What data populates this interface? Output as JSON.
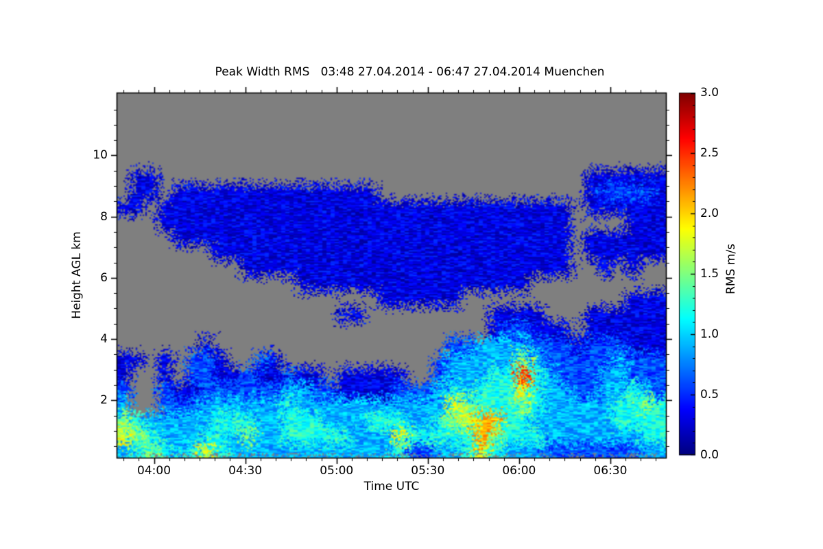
{
  "figure": {
    "background": "#ffffff"
  },
  "chart_data": {
    "type": "heatmap",
    "title": "Peak Width RMS   03:48 27.04.2014 - 06:47 27.04.2014 Muenchen",
    "xlabel": "Time UTC",
    "ylabel": "Height AGL km",
    "x_range_minutes": [
      227.7,
      408.5
    ],
    "x_ticks": [
      {
        "minutes": 240,
        "label": "04:00"
      },
      {
        "minutes": 270,
        "label": "04:30"
      },
      {
        "minutes": 300,
        "label": "05:00"
      },
      {
        "minutes": 330,
        "label": "05:30"
      },
      {
        "minutes": 360,
        "label": "06:00"
      },
      {
        "minutes": 390,
        "label": "06:30"
      }
    ],
    "x_minor_step_minutes": 5,
    "y_range_km": [
      0.1,
      12.05
    ],
    "y_ticks": [
      {
        "km": 2,
        "label": "2"
      },
      {
        "km": 4,
        "label": "4"
      },
      {
        "km": 6,
        "label": "6"
      },
      {
        "km": 8,
        "label": "8"
      },
      {
        "km": 10,
        "label": "10"
      }
    ],
    "y_minor_step_km": 0.5,
    "colorbar": {
      "label": "RMS m/s",
      "min": 0,
      "max": 3,
      "ticks": [
        {
          "value": 0.0,
          "label": "0.0"
        },
        {
          "value": 0.5,
          "label": "0.5"
        },
        {
          "value": 1.0,
          "label": "1.0"
        },
        {
          "value": 1.5,
          "label": "1.5"
        },
        {
          "value": 2.0,
          "label": "2.0"
        },
        {
          "value": 2.5,
          "label": "2.5"
        },
        {
          "value": 3.0,
          "label": "3.0"
        }
      ],
      "minor_step": 0.1,
      "colormap": "jet"
    },
    "no_data_color": "#7f7f7f",
    "grid": {
      "comment": "RMS field, 24 rows (top=11.5-12km ... bottom=0-0.5km, 0.5km per row) x 40 time columns spanning 03:48-06:47. '.'=no data (gray); digit d = RMS value d*0.3 m/s.",
      "cols": 40,
      "rows": 24,
      "height_top_km": 12,
      "height_bottom_km": 0,
      "value_per_unit": 0.3,
      "rows_top_to_bottom": [
        "........................................",
        "........................................",
        "........................................",
        "........................................",
        "........................................",
        ".11...............................111111",
        ".11.111111111111111...............122221",
        "11.111111111111111111111111111111.111111",
        "...111111111111111111111111111111....111",
        "....11111111111111111111111111111.111111",
        ".......11111111111111111111111111.111111",
        ".........111111111111111111111111..1.1..",
        ".............11111111111111111..........",
        "...................111111............111",
        "................11.........1111...111111",
        "...........................122111.111111",
        "......1.................2233332221222111",
        "11.1.221..21...........23333353222223222",
        "1..1.2211211211.11111..23334484322233222",
        "2..2112222223322111122234344464332233432",
        "3..2223333334333333333336544454333334454",
        "5433333444334443334443345677443333334444",
        "6543334435334444433364444475444333333344",
        "3454346433333333333342233464333222222233"
      ]
    }
  }
}
